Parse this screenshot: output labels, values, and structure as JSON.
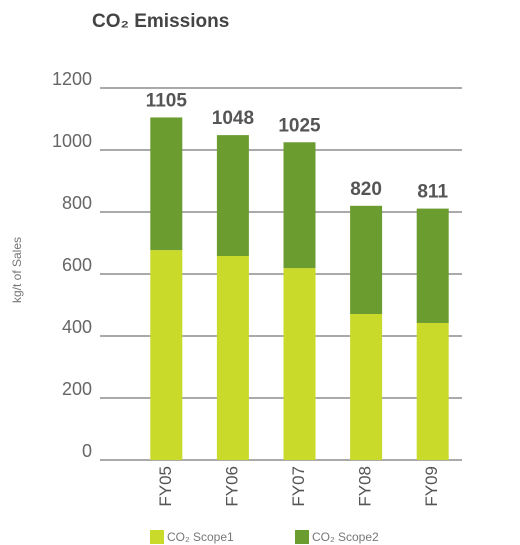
{
  "chart_data": {
    "type": "stacked_bar",
    "title": "CO₂ Emissions",
    "ylabel": "kg/t of Sales",
    "categories": [
      "FY05",
      "FY06",
      "FY07",
      "FY08",
      "FY09"
    ],
    "series": [
      {
        "name": "CO₂ Scope1",
        "color": "#c9da2a",
        "values": [
          677,
          658,
          619,
          471,
          442
        ]
      },
      {
        "name": "CO₂ Scope2",
        "color": "#6b9c30",
        "values": [
          428,
          390,
          406,
          349,
          369
        ]
      }
    ],
    "totals": [
      1105,
      1048,
      1025,
      820,
      811
    ],
    "ylim": [
      0,
      1200
    ],
    "yticks": [
      0,
      200,
      400,
      600,
      800,
      1000,
      1200
    ],
    "grid": true
  }
}
